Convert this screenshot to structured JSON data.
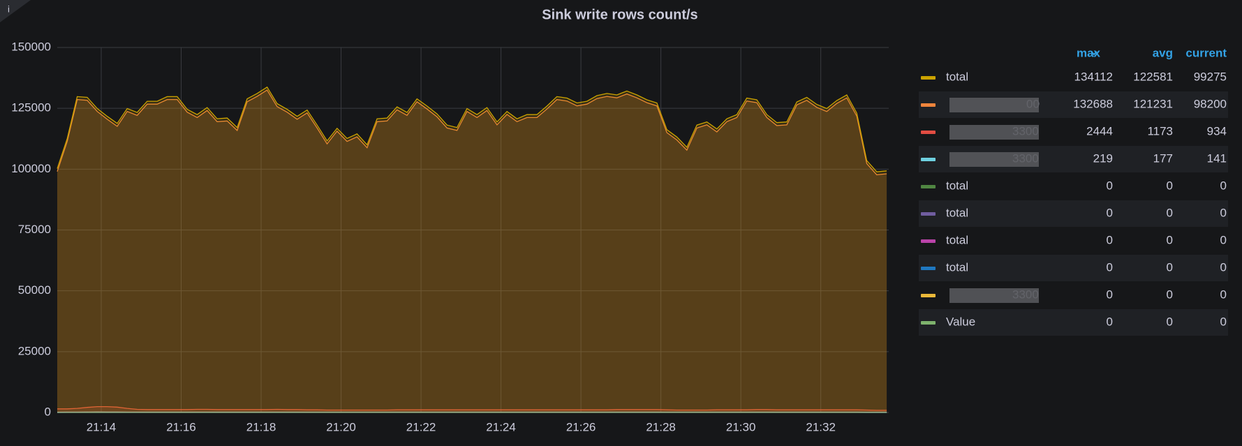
{
  "chart_data": {
    "type": "line",
    "title": "Sink write rows count/s",
    "x": [
      1272.9,
      1273.15,
      1273.4,
      1273.65,
      1273.9,
      1274.15,
      1274.4,
      1274.65,
      1274.9,
      1275.15,
      1275.4,
      1275.65,
      1275.9,
      1276.15,
      1276.4,
      1276.65,
      1276.9,
      1277.15,
      1277.4,
      1277.65,
      1277.9,
      1278.15,
      1278.4,
      1278.65,
      1278.9,
      1279.15,
      1279.4,
      1279.65,
      1279.9,
      1280.15,
      1280.4,
      1280.65,
      1280.9,
      1281.15,
      1281.4,
      1281.65,
      1281.9,
      1282.15,
      1282.4,
      1282.65,
      1282.9,
      1283.15,
      1283.4,
      1283.65,
      1283.9,
      1284.15,
      1284.4,
      1284.65,
      1284.9,
      1285.15,
      1285.4,
      1285.65,
      1285.9,
      1286.15,
      1286.4,
      1286.65,
      1286.9,
      1287.15,
      1287.4,
      1287.65,
      1287.9,
      1288.15,
      1288.4,
      1288.65,
      1288.9,
      1289.15,
      1289.4,
      1289.65,
      1289.9,
      1290.15,
      1290.4,
      1290.65,
      1290.9,
      1291.15,
      1291.4,
      1291.65,
      1291.9,
      1292.15,
      1292.4,
      1292.65,
      1292.9,
      1293.15,
      1293.4,
      1293.65
    ],
    "xlim": [
      1272.9,
      1293.7
    ],
    "xticks": [
      {
        "value": 1274,
        "label": "21:14"
      },
      {
        "value": 1276,
        "label": "21:16"
      },
      {
        "value": 1278,
        "label": "21:18"
      },
      {
        "value": 1280,
        "label": "21:20"
      },
      {
        "value": 1282,
        "label": "21:22"
      },
      {
        "value": 1284,
        "label": "21:24"
      },
      {
        "value": 1286,
        "label": "21:26"
      },
      {
        "value": 1288,
        "label": "21:28"
      },
      {
        "value": 1290,
        "label": "21:30"
      },
      {
        "value": 1292,
        "label": "21:32"
      }
    ],
    "ylim": [
      0,
      150000
    ],
    "yticks": [
      0,
      25000,
      50000,
      75000,
      100000,
      125000,
      150000
    ],
    "grid": true,
    "legend_columns": [
      "max",
      "avg",
      "current"
    ],
    "series": [
      {
        "name": "total",
        "color": "#CCA300",
        "max": 134112,
        "avg": 122581,
        "current": 99275,
        "values": [
          100200,
          112600,
          129800,
          129500,
          124900,
          121700,
          118800,
          124900,
          123300,
          127900,
          127900,
          129800,
          129800,
          124600,
          122400,
          125300,
          120700,
          121000,
          117100,
          128900,
          131100,
          133700,
          126900,
          124600,
          121700,
          124300,
          118100,
          111600,
          116800,
          112600,
          114500,
          110000,
          120700,
          121000,
          125600,
          123300,
          128900,
          125900,
          122700,
          118100,
          117100,
          124900,
          122400,
          125300,
          119400,
          123700,
          120700,
          122400,
          122400,
          125900,
          129800,
          129200,
          127200,
          127900,
          130200,
          131100,
          130500,
          132100,
          130500,
          128500,
          127200,
          116200,
          113200,
          109000,
          118100,
          119400,
          116500,
          120700,
          122400,
          129200,
          128500,
          122400,
          119100,
          119400,
          127600,
          129500,
          126600,
          124900,
          128200,
          130500,
          123000,
          103500,
          98900,
          99300
        ]
      },
      {
        "name": "00",
        "color": "#EF843C",
        "max": 132688,
        "avg": 121231,
        "current": 98200,
        "values": [
          99000,
          111400,
          128600,
          128300,
          123700,
          120500,
          117600,
          123700,
          122100,
          126700,
          126700,
          128600,
          128600,
          123400,
          121200,
          124100,
          119500,
          119800,
          115900,
          127700,
          129900,
          132500,
          125700,
          123400,
          120500,
          123100,
          116900,
          110400,
          115600,
          111400,
          113300,
          108800,
          119500,
          119800,
          124400,
          122100,
          127700,
          124700,
          121500,
          116900,
          115900,
          123700,
          121200,
          124100,
          118200,
          122500,
          119500,
          121200,
          121200,
          124700,
          128600,
          128000,
          126000,
          126700,
          129000,
          129900,
          129300,
          130900,
          129300,
          127300,
          126000,
          115000,
          112000,
          107800,
          116900,
          118200,
          115300,
          119500,
          121200,
          128000,
          127300,
          121200,
          117900,
          118200,
          126400,
          128300,
          125400,
          123700,
          127000,
          129300,
          121800,
          102300,
          97700,
          98100
        ]
      },
      {
        "name": "3300",
        "color": "#E24D42",
        "max": 2444,
        "avg": 1173,
        "current": 934,
        "values": [
          1500,
          1500,
          1700,
          2100,
          2400,
          2400,
          2200,
          1700,
          1300,
          1200,
          1200,
          1200,
          1200,
          1200,
          1300,
          1300,
          1200,
          1200,
          1200,
          1200,
          1200,
          1200,
          1300,
          1200,
          1200,
          1100,
          1100,
          1000,
          1000,
          1000,
          1000,
          1000,
          1000,
          1000,
          1100,
          1100,
          1100,
          1100,
          1100,
          1100,
          1100,
          1100,
          1100,
          1100,
          1100,
          1100,
          1100,
          1100,
          1100,
          1100,
          1100,
          1100,
          1100,
          1100,
          1100,
          1100,
          1200,
          1200,
          1200,
          1200,
          1200,
          1100,
          1000,
          1000,
          1000,
          1000,
          1100,
          1100,
          1100,
          1100,
          1200,
          1200,
          1100,
          1100,
          1100,
          1100,
          1100,
          1100,
          1100,
          1100,
          1100,
          1000,
          900,
          900
        ]
      },
      {
        "name": "3300",
        "color": "#6ED0E0",
        "max": 219,
        "avg": 177,
        "current": 141,
        "values": [
          150,
          160,
          180,
          200,
          219,
          210,
          190,
          180,
          180,
          180,
          170,
          170,
          170,
          180,
          170,
          180,
          170,
          180,
          170,
          180,
          170,
          180,
          170,
          180,
          170,
          180,
          170,
          180,
          170,
          180,
          170,
          180,
          170,
          180,
          170,
          180,
          170,
          180,
          170,
          180,
          170,
          180,
          170,
          180,
          170,
          180,
          170,
          180,
          170,
          180,
          170,
          180,
          170,
          180,
          170,
          180,
          170,
          180,
          170,
          180,
          170,
          180,
          170,
          180,
          170,
          180,
          170,
          180,
          170,
          180,
          170,
          180,
          180,
          180,
          170,
          170,
          180,
          180,
          170,
          170,
          160,
          150,
          140,
          141
        ]
      },
      {
        "name": "total",
        "color": "#508642",
        "max": 0,
        "avg": 0,
        "current": 0,
        "values": [
          0,
          0,
          0,
          0,
          0,
          0,
          0,
          0,
          0,
          0,
          0,
          0,
          0,
          0,
          0,
          0,
          0,
          0,
          0,
          0,
          0,
          0,
          0,
          0,
          0,
          0,
          0,
          0,
          0,
          0,
          0,
          0,
          0,
          0,
          0,
          0,
          0,
          0,
          0,
          0,
          0,
          0,
          0,
          0,
          0,
          0,
          0,
          0,
          0,
          0,
          0,
          0,
          0,
          0,
          0,
          0,
          0,
          0,
          0,
          0,
          0,
          0,
          0,
          0,
          0,
          0,
          0,
          0,
          0,
          0,
          0,
          0,
          0,
          0,
          0,
          0,
          0,
          0,
          0,
          0,
          0,
          0,
          0,
          0
        ]
      },
      {
        "name": "total",
        "color": "#705DA0",
        "max": 0,
        "avg": 0,
        "current": 0,
        "values": [
          0,
          0,
          0,
          0,
          0,
          0,
          0,
          0,
          0,
          0,
          0,
          0,
          0,
          0,
          0,
          0,
          0,
          0,
          0,
          0,
          0,
          0,
          0,
          0,
          0,
          0,
          0,
          0,
          0,
          0,
          0,
          0,
          0,
          0,
          0,
          0,
          0,
          0,
          0,
          0,
          0,
          0,
          0,
          0,
          0,
          0,
          0,
          0,
          0,
          0,
          0,
          0,
          0,
          0,
          0,
          0,
          0,
          0,
          0,
          0,
          0,
          0,
          0,
          0,
          0,
          0,
          0,
          0,
          0,
          0,
          0,
          0,
          0,
          0,
          0,
          0,
          0,
          0,
          0,
          0,
          0,
          0,
          0,
          0
        ]
      },
      {
        "name": "total",
        "color": "#BA43A9",
        "max": 0,
        "avg": 0,
        "current": 0,
        "values": [
          0,
          0,
          0,
          0,
          0,
          0,
          0,
          0,
          0,
          0,
          0,
          0,
          0,
          0,
          0,
          0,
          0,
          0,
          0,
          0,
          0,
          0,
          0,
          0,
          0,
          0,
          0,
          0,
          0,
          0,
          0,
          0,
          0,
          0,
          0,
          0,
          0,
          0,
          0,
          0,
          0,
          0,
          0,
          0,
          0,
          0,
          0,
          0,
          0,
          0,
          0,
          0,
          0,
          0,
          0,
          0,
          0,
          0,
          0,
          0,
          0,
          0,
          0,
          0,
          0,
          0,
          0,
          0,
          0,
          0,
          0,
          0,
          0,
          0,
          0,
          0,
          0,
          0,
          0,
          0,
          0,
          0,
          0,
          0
        ]
      },
      {
        "name": "total",
        "color": "#1F78C1",
        "max": 0,
        "avg": 0,
        "current": 0,
        "values": [
          0,
          0,
          0,
          0,
          0,
          0,
          0,
          0,
          0,
          0,
          0,
          0,
          0,
          0,
          0,
          0,
          0,
          0,
          0,
          0,
          0,
          0,
          0,
          0,
          0,
          0,
          0,
          0,
          0,
          0,
          0,
          0,
          0,
          0,
          0,
          0,
          0,
          0,
          0,
          0,
          0,
          0,
          0,
          0,
          0,
          0,
          0,
          0,
          0,
          0,
          0,
          0,
          0,
          0,
          0,
          0,
          0,
          0,
          0,
          0,
          0,
          0,
          0,
          0,
          0,
          0,
          0,
          0,
          0,
          0,
          0,
          0,
          0,
          0,
          0,
          0,
          0,
          0,
          0,
          0,
          0,
          0,
          0,
          0
        ]
      },
      {
        "name": "3300",
        "color": "#EAB839",
        "max": 0,
        "avg": 0,
        "current": 0,
        "values": [
          0,
          0,
          0,
          0,
          0,
          0,
          0,
          0,
          0,
          0,
          0,
          0,
          0,
          0,
          0,
          0,
          0,
          0,
          0,
          0,
          0,
          0,
          0,
          0,
          0,
          0,
          0,
          0,
          0,
          0,
          0,
          0,
          0,
          0,
          0,
          0,
          0,
          0,
          0,
          0,
          0,
          0,
          0,
          0,
          0,
          0,
          0,
          0,
          0,
          0,
          0,
          0,
          0,
          0,
          0,
          0,
          0,
          0,
          0,
          0,
          0,
          0,
          0,
          0,
          0,
          0,
          0,
          0,
          0,
          0,
          0,
          0,
          0,
          0,
          0,
          0,
          0,
          0,
          0,
          0,
          0,
          0,
          0,
          0
        ]
      },
      {
        "name": "Value",
        "color": "#7EB26D",
        "max": 0,
        "avg": 0,
        "current": 0,
        "values": [
          0,
          0,
          0,
          0,
          0,
          0,
          0,
          0,
          0,
          0,
          0,
          0,
          0,
          0,
          0,
          0,
          0,
          0,
          0,
          0,
          0,
          0,
          0,
          0,
          0,
          0,
          0,
          0,
          0,
          0,
          0,
          0,
          0,
          0,
          0,
          0,
          0,
          0,
          0,
          0,
          0,
          0,
          0,
          0,
          0,
          0,
          0,
          0,
          0,
          0,
          0,
          0,
          0,
          0,
          0,
          0,
          0,
          0,
          0,
          0,
          0,
          0,
          0,
          0,
          0,
          0,
          0,
          0,
          0,
          0,
          0,
          0,
          0,
          0,
          0,
          0,
          0,
          0,
          0,
          0,
          0,
          0,
          0,
          0
        ]
      }
    ]
  }
}
